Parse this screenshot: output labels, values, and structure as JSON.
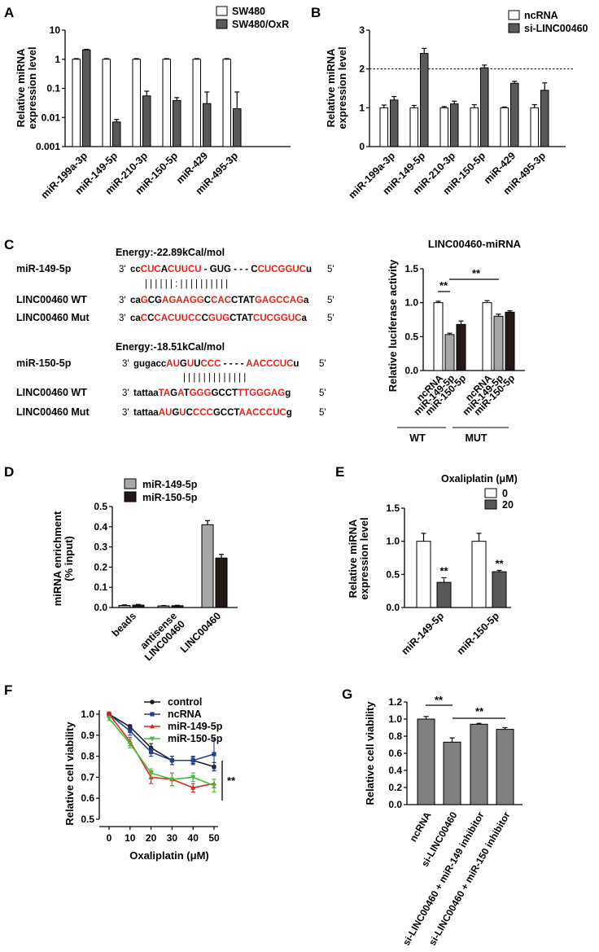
{
  "colors": {
    "white": "#ffffff",
    "dark": "#595959",
    "gray": "#a6a6a6",
    "black": "#231815",
    "red": "#e2231a",
    "blue": "#1f3f9e",
    "green": "#3fbf2f",
    "control": "#1a1a1a"
  },
  "panels": {
    "A": "A",
    "B": "B",
    "C": "C",
    "D": "D",
    "E": "E",
    "F": "F",
    "G": "G"
  },
  "sig": "**",
  "seq": {
    "energy1": "Energy:-22.89kCal/mol",
    "energy2": "Energy:-18.51kCal/mol",
    "r1": {
      "name": "miR-149-5p",
      "p3": "3'",
      "p5": "5'",
      "segs": [
        [
          "cc",
          "k"
        ],
        [
          "CUC",
          "r"
        ],
        [
          "A",
          "k"
        ],
        [
          "CUUCU",
          "r"
        ],
        [
          " - GUG - - - C",
          "k"
        ],
        [
          "CUCGGUC",
          "r"
        ],
        [
          "u",
          "k"
        ]
      ]
    },
    "m1": "|    |  | | | | :    |  | |         | | | | | | |",
    "w1": {
      "name": "LINC00460 WT",
      "p5": "5'",
      "p3": "3'",
      "segs": [
        [
          "ca",
          "k"
        ],
        [
          "G",
          "r"
        ],
        [
          "CG",
          "k"
        ],
        [
          "A",
          "r"
        ],
        [
          "GAAGG",
          "r"
        ],
        [
          "C",
          "k"
        ],
        [
          "CAC",
          "r"
        ],
        [
          "CTAT",
          "k"
        ],
        [
          "GAGCCAG",
          "r"
        ],
        [
          "a",
          "k"
        ]
      ]
    },
    "u1": {
      "name": "LINC00460 Mut",
      "p5": "5'",
      "p3": "3'",
      "segs": [
        [
          "ca",
          "k"
        ],
        [
          "C",
          "r"
        ],
        [
          "C",
          "k"
        ],
        [
          "CA",
          "r"
        ],
        [
          "CUUCC",
          "r"
        ],
        [
          "C",
          "k"
        ],
        [
          "GUG",
          "r"
        ],
        [
          "CTAT",
          "k"
        ],
        [
          "CUCGGUC",
          "r"
        ],
        [
          "a",
          "k"
        ]
      ]
    },
    "r2": {
      "name": "miR-150-5p",
      "p3": "3'",
      "p5": "5'",
      "segs": [
        [
          "gugacc",
          "k"
        ],
        [
          "AU",
          "r"
        ],
        [
          "G",
          "k"
        ],
        [
          "U",
          "r"
        ],
        [
          "U",
          "k"
        ],
        [
          "CCC",
          "r"
        ],
        [
          "  - - - -  ",
          "k"
        ],
        [
          "AACCCUC",
          "r"
        ],
        [
          "u",
          "k"
        ]
      ]
    },
    "m2": "| |    |   | |  |             | | | | | | |",
    "w2": {
      "name": "LINC00460 WT",
      "p5": "5'",
      "p3": "3'",
      "segs": [
        [
          "tattaa",
          "k"
        ],
        [
          "TA",
          "r"
        ],
        [
          "G",
          "k"
        ],
        [
          "A",
          "r"
        ],
        [
          "T",
          "k"
        ],
        [
          "GGG",
          "r"
        ],
        [
          "GCCT",
          "k"
        ],
        [
          "TTGGGAG",
          "r"
        ],
        [
          "g",
          "k"
        ]
      ]
    },
    "u2": {
      "name": "LINC00460 Mut",
      "p5": "5'",
      "p3": "3'",
      "segs": [
        [
          "tattaa",
          "k"
        ],
        [
          "AU",
          "r"
        ],
        [
          "G",
          "k"
        ],
        [
          "U",
          "r"
        ],
        [
          "C",
          "k"
        ],
        [
          "CCC",
          "r"
        ],
        [
          "GCCT",
          "k"
        ],
        [
          "AACCCUC",
          "r"
        ],
        [
          "g",
          "k"
        ]
      ]
    }
  },
  "chart_data": [
    {
      "panel": "A",
      "type": "bar",
      "yscale": "log",
      "ylim": [
        0.001,
        10
      ],
      "yticks": [
        "0.001",
        "0.01",
        "0.1",
        "1",
        "10"
      ],
      "ylabel": [
        "Relative miRNA",
        "expression level"
      ],
      "categories": [
        "miR-199a-3p",
        "miR-149-5p",
        "miR-210-3p",
        "miR-150-5p",
        "miR-429",
        "miR-495-3p"
      ],
      "series": [
        {
          "name": "SW480",
          "fill": "#ffffff",
          "values": [
            1,
            1,
            1,
            1,
            1,
            1
          ],
          "err": [
            0.05,
            0.05,
            0.05,
            0.05,
            0.05,
            0.05
          ]
        },
        {
          "name": "SW480/OxR",
          "fill": "#595959",
          "values": [
            2.1,
            0.007,
            0.055,
            0.038,
            0.03,
            0.02
          ],
          "err": [
            0.1,
            0.0015,
            0.025,
            0.01,
            0.045,
            0.055
          ]
        }
      ],
      "legend": "top-right"
    },
    {
      "panel": "B",
      "type": "bar",
      "ylim": [
        0,
        3
      ],
      "yticks": [
        "0",
        "1",
        "2",
        "3"
      ],
      "ylabel": [
        "Relative miRNA",
        "expression level"
      ],
      "categories": [
        "miR-199a-3p",
        "miR-149-5p",
        "miR-210-3p",
        "miR-150-5p",
        "miR-429",
        "miR-495-3p"
      ],
      "series": [
        {
          "name": "ncRNA",
          "fill": "#ffffff",
          "values": [
            1,
            1,
            1,
            1,
            1,
            1
          ],
          "err": [
            0.07,
            0.06,
            0.03,
            0.08,
            0.02,
            0.08
          ]
        },
        {
          "name": "si-LINC00460",
          "fill": "#595959",
          "values": [
            1.2,
            2.4,
            1.1,
            2.03,
            1.63,
            1.45
          ],
          "err": [
            0.09,
            0.13,
            0.07,
            0.07,
            0.05,
            0.19
          ]
        }
      ],
      "refline": 2,
      "legend": "top-right"
    },
    {
      "panel": "C",
      "type": "bar",
      "title": "LINC00460-miRNA",
      "ylim": [
        0,
        1.5
      ],
      "yticks": [
        "0.0",
        "0.5",
        "1.0",
        "1.5"
      ],
      "ylabel": [
        "Relative luciferase activity"
      ],
      "categories": [
        "ncRNA",
        "miR-149-5p",
        "miR-150-5p",
        "ncRNA",
        "miR-149-5p",
        "miR-150-5p"
      ],
      "values": [
        1.0,
        0.53,
        0.68,
        1.0,
        0.8,
        0.86
      ],
      "err": [
        0.02,
        0.02,
        0.05,
        0.03,
        0.03,
        0.02
      ],
      "fills": [
        "#ffffff",
        "#a6a6a6",
        "#231815",
        "#ffffff",
        "#a6a6a6",
        "#231815"
      ],
      "groups": [
        "WT",
        "MUT"
      ]
    },
    {
      "panel": "D",
      "type": "bar",
      "ylim": [
        0,
        0.5
      ],
      "yticks": [
        "0.0",
        "0.1",
        "0.2",
        "0.3",
        "0.4",
        "0.5"
      ],
      "ylabel": [
        "miRNA enrichment",
        "(% input)"
      ],
      "categories": [
        [
          "beads"
        ],
        [
          "antisense",
          "LINC00460"
        ],
        [
          "LINC00460"
        ]
      ],
      "series": [
        {
          "name": "miR-149-5p",
          "fill": "#a6a6a6",
          "values": [
            0.01,
            0.008,
            0.41
          ],
          "err": [
            0.003,
            0.002,
            0.02
          ]
        },
        {
          "name": "miR-150-5p",
          "fill": "#231815",
          "values": [
            0.012,
            0.009,
            0.245
          ],
          "err": [
            0.003,
            0.002,
            0.018
          ]
        }
      ],
      "legend": "top-left"
    },
    {
      "panel": "E",
      "type": "bar",
      "ylim": [
        0,
        1.5
      ],
      "yticks": [
        "0.0",
        "0.5",
        "1.0",
        "1.5"
      ],
      "ylabel": [
        "Relative miRNA",
        "expression level"
      ],
      "legend_title": "Oxaliplatin (μM)",
      "categories": [
        "miR-149-5p",
        "miR-150-5p"
      ],
      "series": [
        {
          "name": "0",
          "fill": "#ffffff",
          "values": [
            1.0,
            1.0
          ],
          "err": [
            0.12,
            0.12
          ]
        },
        {
          "name": "20",
          "fill": "#595959",
          "values": [
            0.38,
            0.54
          ],
          "err": [
            0.07,
            0.02
          ]
        }
      ]
    },
    {
      "panel": "F",
      "type": "line",
      "xlabel": "Oxaliplatin (μM)",
      "ylabel": [
        "Relative cell viability"
      ],
      "xlim": [
        0,
        50
      ],
      "ylim": [
        0.5,
        1.0
      ],
      "x": [
        0,
        10,
        20,
        30,
        40,
        50
      ],
      "xticks": [
        "0",
        "10",
        "20",
        "30",
        "40",
        "50"
      ],
      "yticks": [
        "0.5",
        "0.6",
        "0.7",
        "0.8",
        "0.9",
        "1.0"
      ],
      "series": [
        {
          "name": "control",
          "color": "#1a1a1a",
          "marker": "circle",
          "values": [
            1.0,
            0.94,
            0.84,
            0.78,
            0.78,
            0.75
          ],
          "err": [
            0.01,
            0.01,
            0.02,
            0.02,
            0.015,
            0.02
          ]
        },
        {
          "name": "ncRNA",
          "color": "#1f3f9e",
          "marker": "square",
          "values": [
            1.0,
            0.92,
            0.82,
            0.78,
            0.78,
            0.81
          ],
          "err": [
            0.01,
            0.02,
            0.02,
            0.02,
            0.02,
            0.07
          ]
        },
        {
          "name": "miR-149-5p",
          "color": "#e2231a",
          "marker": "triangle",
          "values": [
            1.0,
            0.87,
            0.7,
            0.69,
            0.65,
            0.67
          ],
          "err": [
            0.01,
            0.02,
            0.03,
            0.03,
            0.02,
            0.02
          ]
        },
        {
          "name": "miR-150-5p",
          "color": "#3fbf2f",
          "marker": "triangle-down",
          "values": [
            0.98,
            0.86,
            0.72,
            0.69,
            0.7,
            0.66
          ],
          "err": [
            0.01,
            0.02,
            0.02,
            0.03,
            0.02,
            0.03
          ]
        }
      ]
    },
    {
      "panel": "G",
      "type": "bar",
      "ylim": [
        0,
        1.2
      ],
      "yticks": [
        "0.0",
        "0.2",
        "0.4",
        "0.6",
        "0.8",
        "1.0",
        "1.2"
      ],
      "ylabel": [
        "Relative cell viability"
      ],
      "categories": [
        "ncRNA",
        "si-LINC00460",
        "si-LINC00460 + miR-149 inhibitor",
        "si-LINC00460 + miR-150 inhibitor"
      ],
      "values": [
        1.0,
        0.73,
        0.94,
        0.88
      ],
      "err": [
        0.03,
        0.05,
        0.01,
        0.02
      ],
      "fill": "#808080"
    }
  ]
}
